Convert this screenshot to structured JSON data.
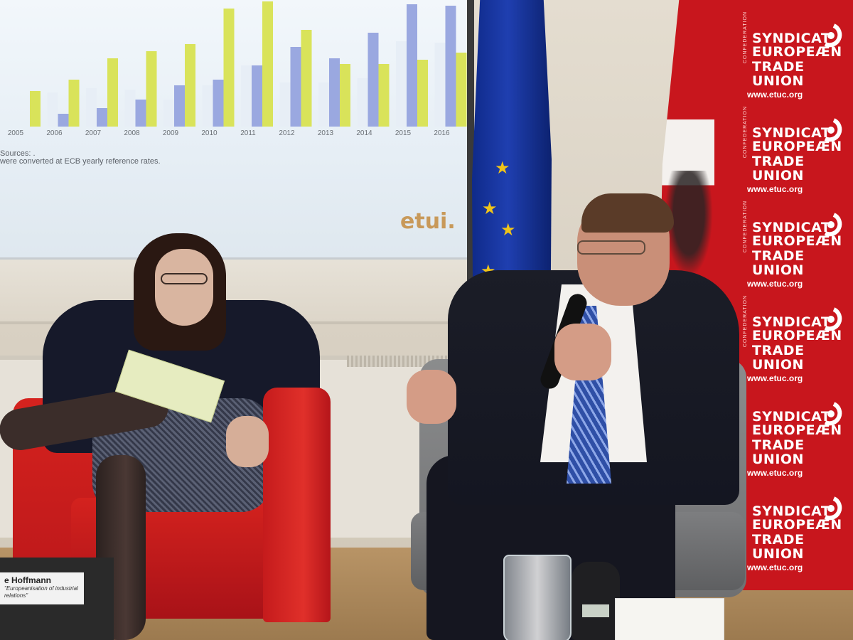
{
  "slide": {
    "years": [
      "2005",
      "2006",
      "2007",
      "2008",
      "2009",
      "2010",
      "2011",
      "2012",
      "2013",
      "2014",
      "2015",
      "2016"
    ],
    "note_1": "Sources: .",
    "note_2": "were converted at ECB yearly reference rates.",
    "logo": "etui."
  },
  "banner": {
    "side_label": "CONFEDERATION",
    "line_1": "SYNDICAT",
    "line_2": "EUROPEÆN",
    "line_3": "TRADE UNION",
    "url": "www.etuc.org",
    "color": "#c8161d"
  },
  "name_card": {
    "name": "e Hoffmann",
    "subtitle": "\"Europeanisation of industrial relations\""
  },
  "colors": {
    "bar_blue": "#9aa8e0",
    "bar_yellow": "#d9e35a",
    "bar_pale": "#e7eef6",
    "eu_star": "#f0c419"
  }
}
